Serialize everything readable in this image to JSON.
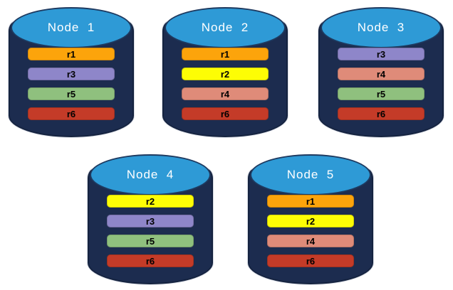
{
  "colors": {
    "page_background": "#FFFFFF",
    "cylinder_body": "#1C2C4F",
    "cylinder_body_outline": "#15233F",
    "cylinder_top": "#2E9AD6",
    "cylinder_top_border": "#1E3A60",
    "node_title_text": "#FFFFFF",
    "replica_label_text": "#000000"
  },
  "replica_colors": {
    "r1": "#FCA40B",
    "r2": "#FDFD05",
    "r3": "#8E86C9",
    "r4": "#DF8B79",
    "r5": "#8FC07E",
    "r6": "#C43B28"
  },
  "nodes": [
    {
      "label": "Node  1",
      "replicas": [
        "r1",
        "r3",
        "r5",
        "r6"
      ]
    },
    {
      "label": "Node  2",
      "replicas": [
        "r1",
        "r2",
        "r4",
        "r6"
      ]
    },
    {
      "label": "Node  3",
      "replicas": [
        "r3",
        "r4",
        "r5",
        "r6"
      ]
    },
    {
      "label": "Node  4",
      "replicas": [
        "r2",
        "r3",
        "r5",
        "r6"
      ]
    },
    {
      "label": "Node  5",
      "replicas": [
        "r1",
        "r2",
        "r4",
        "r6"
      ]
    }
  ]
}
